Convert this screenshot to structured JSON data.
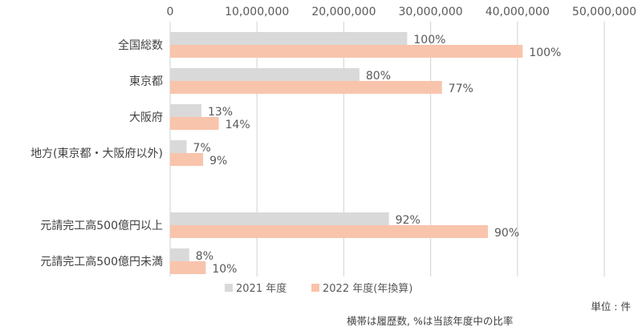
{
  "chart_data": {
    "type": "bar",
    "orientation": "horizontal",
    "x_ticks": [
      0,
      10000000,
      20000000,
      30000000,
      40000000,
      50000000
    ],
    "x_tick_labels": [
      "0",
      "10,000,000",
      "20,000,000",
      "30,000,000",
      "40,000,000",
      "50,000,000"
    ],
    "xlim": [
      0,
      50000000
    ],
    "x_axis_position": "top",
    "grid": true,
    "categories": [
      "全国総数",
      "東京都",
      "大阪府",
      "地方(東京都・大阪府以外)",
      "",
      "元請完工高500億円以上",
      "元請完工高500億円未満"
    ],
    "series": [
      {
        "name": "2021 年度",
        "color": "#d9d9d9",
        "values": [
          27300000,
          21800000,
          3600000,
          1900000,
          null,
          25200000,
          2200000
        ],
        "labels": [
          "100%",
          "80%",
          "13%",
          "7%",
          "",
          "92%",
          "8%"
        ]
      },
      {
        "name": "2022 年度(年換算)",
        "color": "#f8c4ac",
        "values": [
          40600000,
          31300000,
          5600000,
          3800000,
          null,
          36600000,
          4100000
        ],
        "labels": [
          "100%",
          "77%",
          "14%",
          "9%",
          "",
          "90%",
          "10%"
        ]
      }
    ],
    "legend_position": "bottom"
  },
  "notes": {
    "unit": "単位 : 件",
    "caption": "横帯は履歴数, %は当該年度中の比率"
  }
}
